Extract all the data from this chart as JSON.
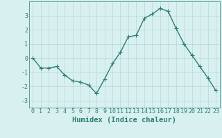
{
  "x": [
    0,
    1,
    2,
    3,
    4,
    5,
    6,
    7,
    8,
    9,
    10,
    11,
    12,
    13,
    14,
    15,
    16,
    17,
    18,
    19,
    20,
    21,
    22,
    23
  ],
  "y": [
    0.0,
    -0.7,
    -0.7,
    -0.6,
    -1.2,
    -1.6,
    -1.7,
    -1.9,
    -2.5,
    -1.5,
    -0.4,
    0.4,
    1.5,
    1.6,
    2.8,
    3.1,
    3.5,
    3.3,
    2.1,
    1.0,
    0.2,
    -0.6,
    -1.4,
    -2.3
  ],
  "line_color": "#2e7d72",
  "marker": "+",
  "marker_size": 4,
  "bg_color": "#d8f0f0",
  "grid_color": "#b8d8d8",
  "xlabel": "Humidex (Indice chaleur)",
  "xlim": [
    -0.5,
    23.5
  ],
  "ylim": [
    -3.5,
    4.0
  ],
  "yticks": [
    -3,
    -2,
    -1,
    0,
    1,
    2,
    3
  ],
  "xticks": [
    0,
    1,
    2,
    3,
    4,
    5,
    6,
    7,
    8,
    9,
    10,
    11,
    12,
    13,
    14,
    15,
    16,
    17,
    18,
    19,
    20,
    21,
    22,
    23
  ],
  "axis_color": "#2e7d72",
  "label_fontsize": 7.5,
  "tick_fontsize": 6.0,
  "linewidth": 1.0,
  "marker_linewidth": 0.8
}
